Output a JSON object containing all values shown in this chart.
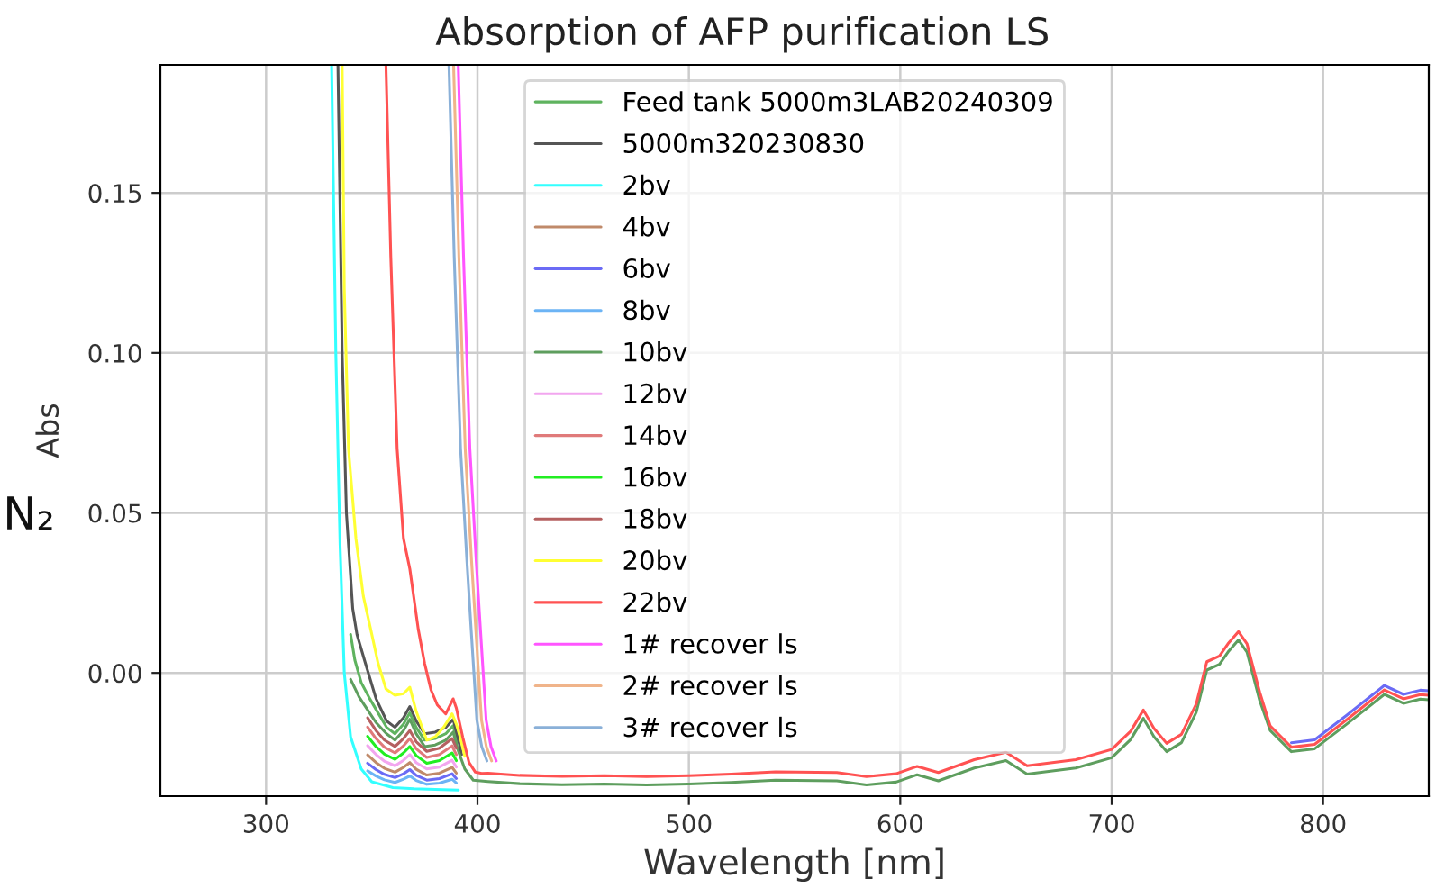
{
  "chart_data": {
    "type": "line",
    "title": "Absorption of AFP purification LS",
    "xlabel": "Wavelength [nm]",
    "ylabel": "Abs",
    "annotations": [
      "N₂"
    ],
    "xlim": [
      250,
      850
    ],
    "ylim": [
      -0.0385,
      0.19
    ],
    "xticks": [
      300,
      400,
      500,
      600,
      700,
      800
    ],
    "yticks": [
      {
        "value": 0,
        "label": "0.00"
      },
      {
        "value": 0.05,
        "label": "0.05"
      },
      {
        "value": 0.1,
        "label": "0.10"
      },
      {
        "value": 0.15,
        "label": "0.15"
      }
    ],
    "grid": true,
    "legend": "top",
    "series": [
      {
        "name": "Feed tank 5000m3LAB20240309",
        "color": "#5fb35f",
        "x": [
          340,
          342,
          345,
          349,
          353,
          357,
          361,
          365,
          368,
          371,
          375,
          380,
          385,
          388.5,
          390.5
        ],
        "values": [
          0.012,
          0.004,
          -0.003,
          -0.008,
          -0.0125,
          -0.017,
          -0.019,
          -0.016,
          -0.0125,
          -0.017,
          -0.021,
          -0.0205,
          -0.019,
          -0.0165,
          -0.0215
        ]
      },
      {
        "name": "5000m320230830",
        "color": "#555555",
        "x": [
          334,
          336,
          338,
          341,
          343,
          347,
          352,
          357,
          361,
          365,
          368,
          371,
          375,
          380,
          385,
          388.5,
          391,
          392.5
        ],
        "values": [
          0.19,
          0.1,
          0.05,
          0.02,
          0.012,
          0.003,
          -0.008,
          -0.015,
          -0.017,
          -0.014,
          -0.0105,
          -0.015,
          -0.019,
          -0.0185,
          -0.017,
          -0.0145,
          -0.021,
          -0.0255
        ]
      },
      {
        "name": "2bv",
        "color": "#33ffff",
        "x": [
          331,
          333,
          335,
          337,
          340,
          345,
          350,
          360,
          370,
          380,
          391
        ],
        "values": [
          0.19,
          0.1,
          0.04,
          0.0,
          -0.02,
          -0.03,
          -0.034,
          -0.0358,
          -0.0362,
          -0.0364,
          -0.0366
        ]
      },
      {
        "name": "4bv",
        "color": "#c08a6a",
        "x": [
          348,
          352,
          356,
          361,
          365,
          368,
          371,
          376,
          382,
          388,
          390
        ],
        "values": [
          -0.0256,
          -0.028,
          -0.0298,
          -0.031,
          -0.0295,
          -0.028,
          -0.0301,
          -0.0319,
          -0.0313,
          -0.0295,
          -0.0313
        ]
      },
      {
        "name": "6bv",
        "color": "#6b6bf5",
        "x": [
          348,
          352,
          356,
          361,
          365,
          368,
          371,
          376,
          382,
          388,
          390,
          600,
          785,
          796,
          811,
          829,
          838,
          846,
          850
        ],
        "values": [
          -0.0282,
          -0.0302,
          -0.0317,
          -0.0327,
          -0.0315,
          -0.0302,
          -0.032,
          -0.0335,
          -0.033,
          -0.0315,
          -0.033,
          null,
          -0.0218,
          -0.0209,
          -0.0133,
          -0.0039,
          -0.0067,
          -0.0054,
          -0.0056
        ]
      },
      {
        "name": "8bv",
        "color": "#6cb4f5",
        "x": [
          348,
          352,
          356,
          361,
          365,
          368,
          371,
          376,
          382,
          388,
          390
        ],
        "values": [
          -0.0306,
          -0.0322,
          -0.0334,
          -0.0342,
          -0.0332,
          -0.0322,
          -0.0336,
          -0.0348,
          -0.0344,
          -0.0332,
          -0.0344
        ]
      },
      {
        "name": "10bv",
        "color": "#5e9e5e",
        "x": [
          340,
          344,
          348,
          352,
          357,
          361,
          365,
          368,
          371,
          375,
          380,
          385,
          388.5,
          391,
          394,
          398,
          405,
          420,
          440,
          460,
          480,
          500,
          520,
          541,
          570,
          584,
          598,
          608,
          618,
          635,
          650,
          660,
          683,
          700,
          709,
          715,
          720,
          726,
          733,
          740,
          745,
          751,
          755,
          760,
          764,
          770,
          775,
          785,
          796,
          811,
          829,
          838,
          846,
          850
        ],
        "values": [
          -0.002,
          -0.0075,
          -0.0115,
          -0.0155,
          -0.019,
          -0.021,
          -0.018,
          -0.0145,
          -0.019,
          -0.023,
          -0.0225,
          -0.021,
          -0.0185,
          -0.0245,
          -0.03,
          -0.0335,
          -0.0339,
          -0.0346,
          -0.0349,
          -0.0347,
          -0.035,
          -0.0347,
          -0.0342,
          -0.0335,
          -0.0337,
          -0.035,
          -0.0341,
          -0.0318,
          -0.0337,
          -0.0297,
          -0.0274,
          -0.0316,
          -0.0297,
          -0.0265,
          -0.0208,
          -0.0142,
          -0.0199,
          -0.0246,
          -0.0218,
          -0.0123,
          0.0009,
          0.0027,
          0.0065,
          0.0103,
          0.0065,
          -0.0086,
          -0.018,
          -0.0246,
          -0.0237,
          -0.0161,
          -0.0067,
          -0.0095,
          -0.0082,
          -0.0084
        ]
      },
      {
        "name": "12bv",
        "color": "#f2a6ef",
        "x": [
          348,
          352,
          356,
          361,
          365,
          368,
          371,
          376,
          382,
          388,
          390
        ],
        "values": [
          -0.0227,
          -0.0255,
          -0.0276,
          -0.029,
          -0.0273,
          -0.0255,
          -0.028,
          -0.03,
          -0.0294,
          -0.0273,
          -0.0294
        ]
      },
      {
        "name": "14bv",
        "color": "#e07a7a",
        "x": [
          348,
          352,
          356,
          361,
          365,
          368,
          371,
          376,
          382,
          388,
          390
        ],
        "values": [
          -0.0169,
          -0.0205,
          -0.0232,
          -0.025,
          -0.0228,
          -0.0205,
          -0.0237,
          -0.0264,
          -0.0255,
          -0.0228,
          -0.0255
        ]
      },
      {
        "name": "16bv",
        "color": "#22ee22",
        "x": [
          348,
          352,
          356,
          361,
          365,
          368,
          371,
          376,
          382,
          388,
          390
        ],
        "values": [
          -0.0198,
          -0.023,
          -0.0254,
          -0.027,
          -0.025,
          -0.023,
          -0.0258,
          -0.0282,
          -0.0274,
          -0.025,
          -0.0274
        ]
      },
      {
        "name": "18bv",
        "color": "#b56060",
        "x": [
          348,
          352,
          356,
          361,
          365,
          368,
          371,
          376,
          382,
          388,
          390
        ],
        "values": [
          -0.014,
          -0.018,
          -0.021,
          -0.023,
          -0.0205,
          -0.018,
          -0.0215,
          -0.0245,
          -0.0235,
          -0.0205,
          -0.0235
        ]
      },
      {
        "name": "20bv",
        "color": "#ffff33",
        "x": [
          336,
          337,
          339,
          342.5,
          346,
          349.5,
          353,
          356.7,
          361,
          365,
          368,
          371,
          376,
          380,
          384,
          388,
          390,
          392,
          394
        ],
        "values": [
          0.19,
          0.12,
          0.07,
          0.042,
          0.024,
          0.0136,
          0.003,
          -0.005,
          -0.007,
          -0.0065,
          -0.0045,
          -0.012,
          -0.021,
          -0.02,
          -0.017,
          -0.0128,
          -0.016,
          -0.0205,
          -0.026
        ]
      },
      {
        "name": "22bv",
        "color": "#ff5252",
        "x": [
          356.7,
          359,
          362,
          365,
          368,
          372,
          375,
          378,
          381,
          385,
          388.5,
          390,
          393,
          396,
          399,
          402,
          405,
          420,
          440,
          460,
          480,
          500,
          520,
          541,
          570,
          584,
          598,
          608,
          618,
          635,
          650,
          660,
          683,
          700,
          709,
          715,
          720,
          726,
          733,
          740,
          745,
          751,
          755,
          760,
          764,
          770,
          775,
          785,
          796,
          811,
          829,
          838,
          846,
          850
        ],
        "values": [
          0.19,
          0.13,
          0.07,
          0.042,
          0.0325,
          0.0136,
          0.003,
          -0.0053,
          -0.01,
          -0.0128,
          -0.0081,
          -0.011,
          -0.02,
          -0.028,
          -0.031,
          -0.0314,
          -0.0313,
          -0.032,
          -0.0323,
          -0.0321,
          -0.0324,
          -0.0321,
          -0.0316,
          -0.0309,
          -0.0311,
          -0.0324,
          -0.0315,
          -0.0292,
          -0.0311,
          -0.0271,
          -0.0248,
          -0.029,
          -0.0271,
          -0.0239,
          -0.0182,
          -0.0116,
          -0.0173,
          -0.022,
          -0.0192,
          -0.0097,
          0.0035,
          0.0053,
          0.0091,
          0.0129,
          0.0091,
          -0.006,
          -0.0166,
          -0.0232,
          -0.0223,
          -0.0147,
          -0.0053,
          -0.0081,
          -0.0068,
          -0.007
        ]
      },
      {
        "name": "1# recover ls",
        "color": "#ff55ff",
        "x": [
          390.9,
          393.4,
          396.4,
          399.4,
          401.4,
          404.1,
          406.4,
          408.9
        ],
        "values": [
          0.19,
          0.13,
          0.07,
          0.035,
          0.0136,
          -0.0147,
          -0.023,
          -0.0275
        ]
      },
      {
        "name": "2# recover ls",
        "color": "#f0b48a",
        "x": [
          388.7,
          391.2,
          394.2,
          397.2,
          399.2,
          401.9,
          404.2,
          406.7
        ],
        "values": [
          0.19,
          0.13,
          0.07,
          0.035,
          0.0136,
          -0.0147,
          -0.023,
          -0.0275
        ]
      },
      {
        "name": "3# recover ls",
        "color": "#8ab0d8",
        "x": [
          386.5,
          389,
          392,
          395,
          397,
          399.7,
          402,
          404.5
        ],
        "values": [
          0.19,
          0.13,
          0.07,
          0.035,
          0.0136,
          -0.0147,
          -0.023,
          -0.0275
        ]
      }
    ]
  }
}
